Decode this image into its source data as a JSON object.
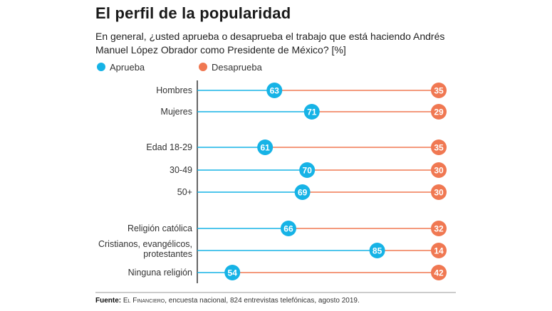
{
  "title": "El perfil de la popularidad",
  "subtitle": "En general, ¿usted aprueba o desaprueba el trabajo que está haciendo Andrés Manuel López Obrador como Presidente de México? [%]",
  "source": {
    "label": "Fuente:",
    "outlet": "El Financiero",
    "text": ", encuesta nacional, 824 entrevistas telefónicas, agosto 2019."
  },
  "colors": {
    "aprueba": "#16b3e6",
    "desaprueba": "#f07852",
    "axis": "#333333",
    "divider": "#9a9a9a"
  },
  "chart_data": {
    "type": "dot",
    "categories": [
      [
        "Hombres"
      ],
      [
        "Mujeres"
      ],
      [
        "Edad 18-29"
      ],
      [
        "30-49"
      ],
      [
        "50+"
      ],
      [
        "Religión católica"
      ],
      [
        "Cristianos, evangélicos,",
        "protestantes"
      ],
      [
        "Ninguna religión"
      ]
    ],
    "series": [
      {
        "name": "Aprueba",
        "values": [
          63,
          71,
          61,
          70,
          69,
          66,
          85,
          54
        ]
      },
      {
        "name": "Desaprueba",
        "values": [
          35,
          29,
          35,
          30,
          30,
          32,
          14,
          42
        ]
      }
    ],
    "legend": "top-left"
  }
}
